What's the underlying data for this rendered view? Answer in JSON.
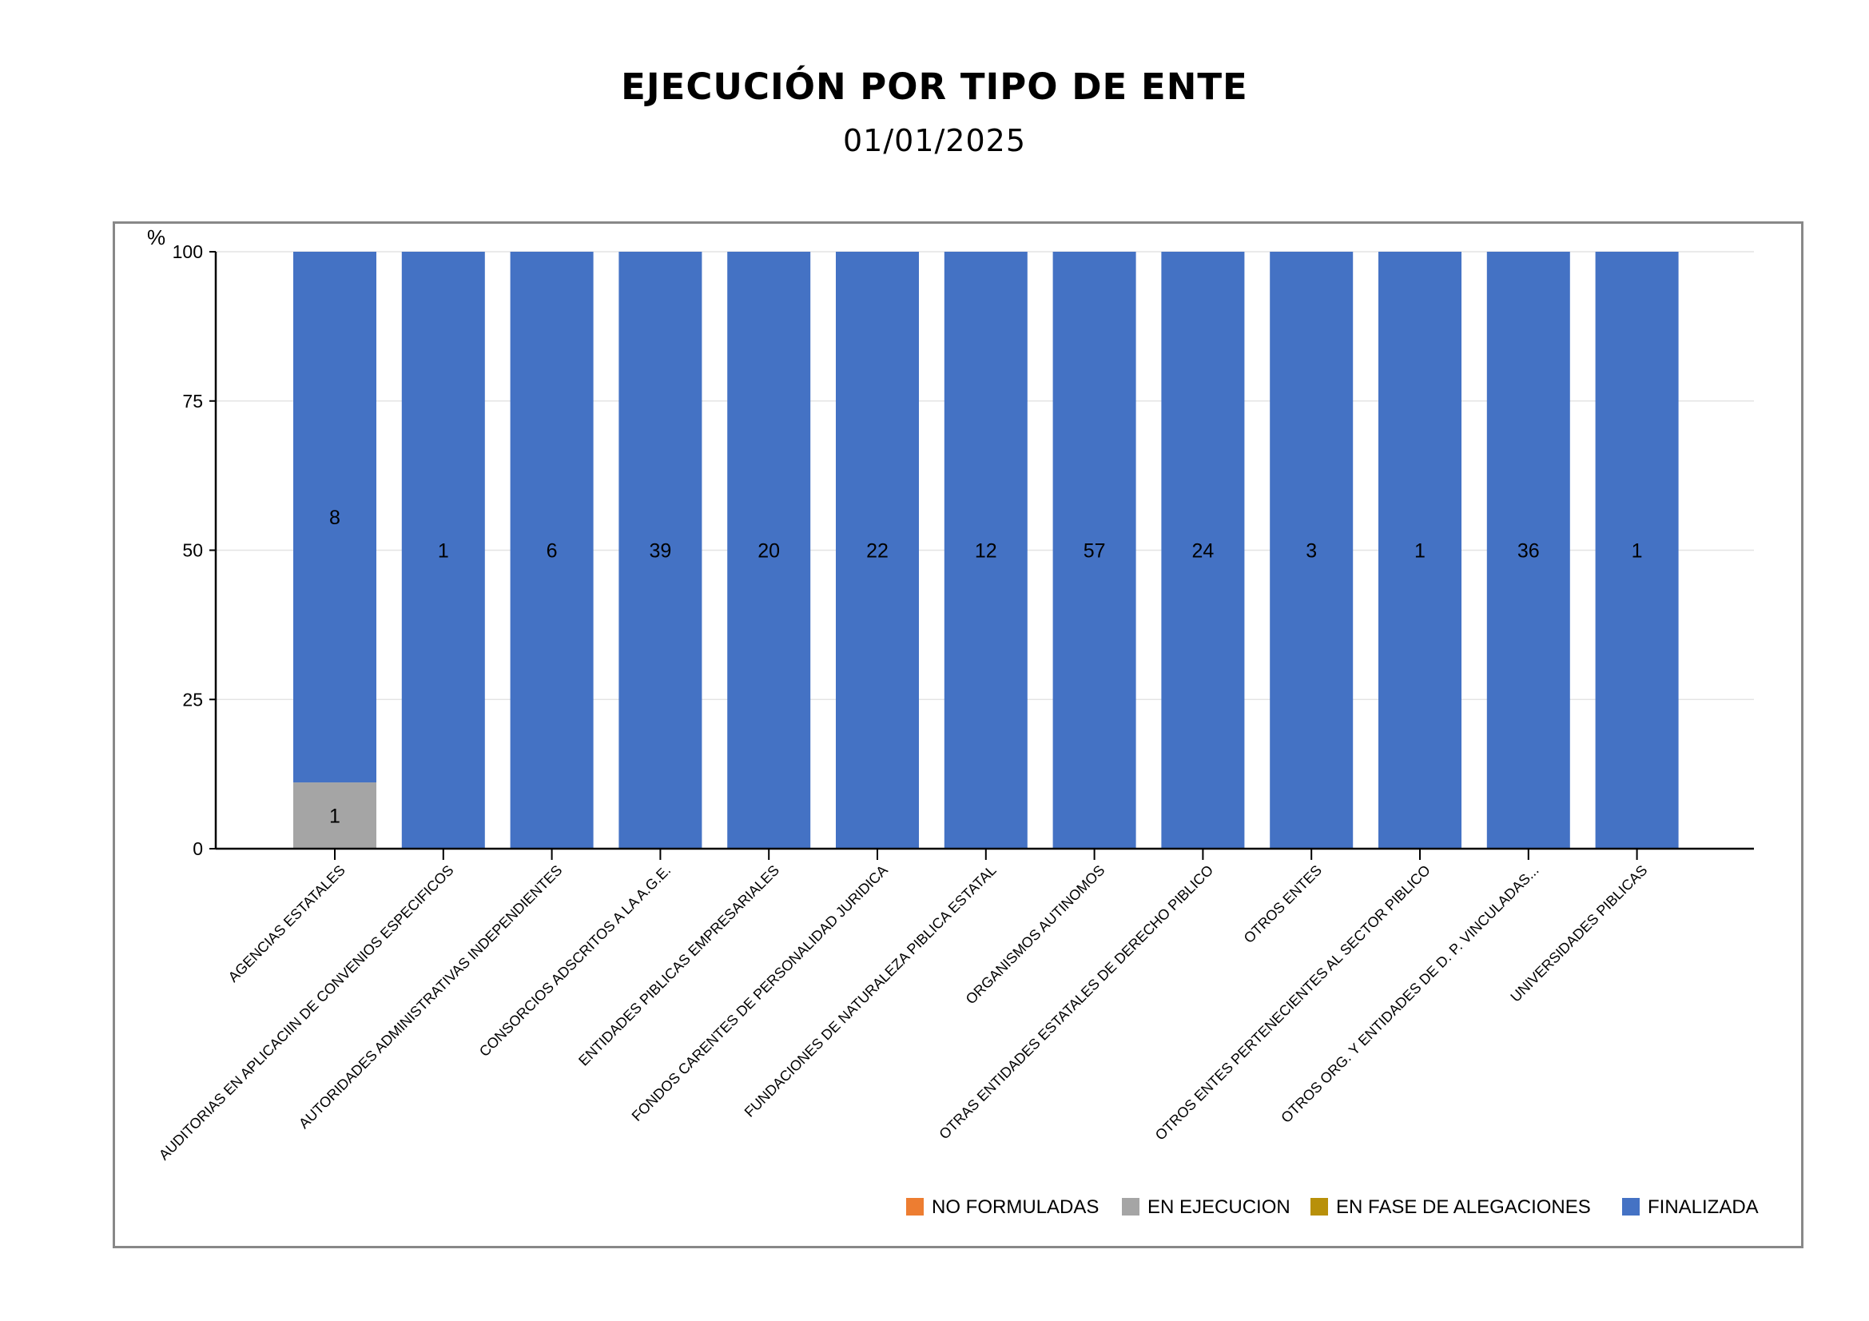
{
  "header": {
    "title": "EJECUCIÓN POR TIPO DE ENTE",
    "subtitle": "01/01/2025"
  },
  "chart_data": {
    "type": "bar",
    "stacked": true,
    "title": "EJECUCIÓN POR TIPO DE ENTE",
    "subtitle": "01/01/2025",
    "xlabel": "",
    "ylabel": "%",
    "ylim": [
      0,
      100
    ],
    "yticks": [
      0,
      25,
      50,
      75,
      100
    ],
    "grid": true,
    "legend_position": "bottom-right",
    "categories": [
      "AGENCIAS ESTATALES",
      "AUDITORIAS EN APLICACIIN DE CONVENIOS ESPECIFICOS",
      "AUTORIDADES ADMINISTRATIVAS INDEPENDIENTES",
      "CONSORCIOS ADSCRITOS A LA A.G.E.",
      "ENTIDADES PIBLICAS EMPRESARIALES",
      "FONDOS CARENTES DE PERSONALIDAD JURIDICA",
      "FUNDACIONES DE NATURALEZA PIBLICA ESTATAL",
      "ORGANISMOS AUTINOMOS",
      "OTRAS ENTIDADES ESTATALES DE DERECHO PIBLICO",
      "OTROS ENTES",
      "OTROS ENTES PERTENECIENTES AL SECTOR PIBLICO",
      "OTROS ORG. Y ENTIDADES DE D. P. VINCULADAS...",
      "UNIVERSIDADES PIBLICAS"
    ],
    "series": [
      {
        "name": "NO FORMULADAS",
        "color": "#ED7D31",
        "values": [
          0,
          0,
          0,
          0,
          0,
          0,
          0,
          0,
          0,
          0,
          0,
          0,
          0
        ],
        "counts": [
          0,
          0,
          0,
          0,
          0,
          0,
          0,
          0,
          0,
          0,
          0,
          0,
          0
        ]
      },
      {
        "name": "EN EJECUCION",
        "color": "#A5A5A5",
        "values": [
          11.1,
          0,
          0,
          0,
          0,
          0,
          0,
          0,
          0,
          0,
          0,
          0,
          0
        ],
        "counts": [
          1,
          0,
          0,
          0,
          0,
          0,
          0,
          0,
          0,
          0,
          0,
          0,
          0
        ]
      },
      {
        "name": "EN FASE DE ALEGACIONES",
        "color": "#B8900A",
        "values": [
          0,
          0,
          0,
          0,
          0,
          0,
          0,
          0,
          0,
          0,
          0,
          0,
          0
        ],
        "counts": [
          0,
          0,
          0,
          0,
          0,
          0,
          0,
          0,
          0,
          0,
          0,
          0,
          0
        ]
      },
      {
        "name": "FINALIZADA",
        "color": "#4472C4",
        "values": [
          88.9,
          100,
          100,
          100,
          100,
          100,
          100,
          100,
          100,
          100,
          100,
          100,
          100
        ],
        "counts": [
          8,
          1,
          6,
          39,
          20,
          22,
          12,
          57,
          24,
          3,
          1,
          36,
          1
        ]
      }
    ]
  }
}
